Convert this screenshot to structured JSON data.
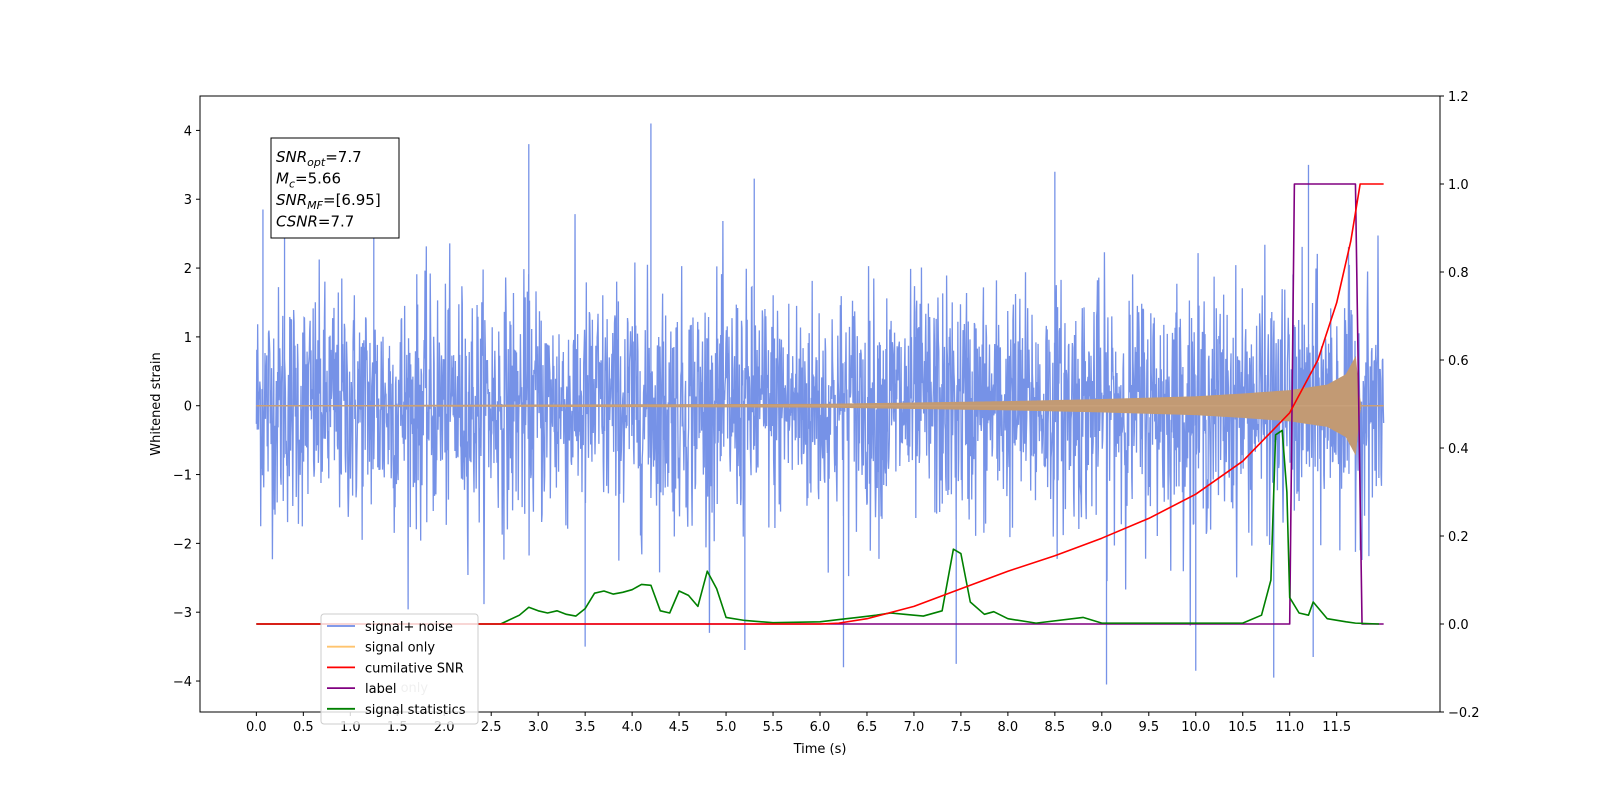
{
  "chart_data": {
    "type": "line",
    "xlabel": "Time (s)",
    "ylabel_left": "Whitened strain",
    "ylabel_right": "",
    "xlim": [
      -0.6,
      12.6
    ],
    "ylim_left": [
      -4.45,
      4.5
    ],
    "ylim_right": [
      -0.2,
      1.2
    ],
    "x_ticks": [
      "0.0",
      "0.5",
      "1.0",
      "1.5",
      "2.0",
      "2.5",
      "3.0",
      "3.5",
      "4.0",
      "4.5",
      "5.0",
      "5.5",
      "6.0",
      "6.5",
      "7.0",
      "7.5",
      "8.0",
      "8.5",
      "9.0",
      "9.5",
      "10.0",
      "10.5",
      "11.0",
      "11.5"
    ],
    "x_tick_values": [
      0,
      0.5,
      1,
      1.5,
      2,
      2.5,
      3,
      3.5,
      4,
      4.5,
      5,
      5.5,
      6,
      6.5,
      7,
      7.5,
      8,
      8.5,
      9,
      9.5,
      10,
      10.5,
      11,
      11.5
    ],
    "y_left_ticks": [
      "4",
      "3",
      "2",
      "1",
      "0",
      "−1",
      "−2",
      "−3",
      "−4"
    ],
    "y_left_tick_values": [
      4,
      3,
      2,
      1,
      0,
      -1,
      -2,
      -3,
      -4
    ],
    "y_right_ticks": [
      "1.2",
      "1.0",
      "0.8",
      "0.6",
      "0.4",
      "0.2",
      "0.0",
      "−0.2"
    ],
    "y_right_tick_values": [
      1.2,
      1.0,
      0.8,
      0.6,
      0.4,
      0.2,
      0.0,
      -0.2
    ],
    "annotation": {
      "lines": [
        {
          "main": "SNR",
          "sub": "opt",
          "rest": "=7.7"
        },
        {
          "main": "M",
          "sub": "c",
          "rest": "=5.66"
        },
        {
          "main": "SNR",
          "sub": "MF",
          "rest": "=[6.95]"
        },
        {
          "main": "CSNR",
          "sub": "",
          "rest": "=7.7"
        }
      ]
    },
    "legend": {
      "position": "lower-left",
      "entries": [
        {
          "label": "signal+ noise",
          "color": "#6f8ce6"
        },
        {
          "label": "signal only",
          "color": "#ffc46e"
        },
        {
          "label": "cumilative SNR",
          "color": "#ff0000"
        },
        {
          "label": "label",
          "color": "#800080"
        },
        {
          "label": "signal statistics",
          "color": "#008000"
        }
      ]
    },
    "hidden_legend_text": "label only",
    "series": [
      {
        "name": "signal+ noise",
        "axis": "left",
        "color": "#6f8ce6",
        "kind": "noise",
        "t_start": 0.0,
        "t_end": 12.0,
        "band_sigma": 0.85,
        "peaks": [
          {
            "x": 0.07,
            "y": 2.85
          },
          {
            "x": 0.3,
            "y": 3.0
          },
          {
            "x": 1.25,
            "y": 3.05
          },
          {
            "x": 2.9,
            "y": 3.8
          },
          {
            "x": 4.2,
            "y": 4.1
          },
          {
            "x": 5.3,
            "y": 3.3
          },
          {
            "x": 8.5,
            "y": 3.4
          },
          {
            "x": 11.2,
            "y": 3.5
          },
          {
            "x": 3.5,
            "y": -3.5
          },
          {
            "x": 5.2,
            "y": -3.55
          },
          {
            "x": 6.25,
            "y": -3.8
          },
          {
            "x": 7.45,
            "y": -3.75
          },
          {
            "x": 9.05,
            "y": -4.05
          },
          {
            "x": 10.0,
            "y": -3.85
          },
          {
            "x": 10.83,
            "y": -3.95
          },
          {
            "x": 11.25,
            "y": -3.65
          }
        ]
      },
      {
        "name": "signal only",
        "axis": "left",
        "color": "#ffc46e",
        "kind": "envelope",
        "points": [
          [
            0,
            0.0
          ],
          [
            6.0,
            0.02
          ],
          [
            7.0,
            0.04
          ],
          [
            8.0,
            0.06
          ],
          [
            9.0,
            0.09
          ],
          [
            10.0,
            0.13
          ],
          [
            10.5,
            0.17
          ],
          [
            11.0,
            0.22
          ],
          [
            11.4,
            0.3
          ],
          [
            11.6,
            0.45
          ],
          [
            11.7,
            0.7
          ],
          [
            11.75,
            0.0
          ],
          [
            12.0,
            0.0
          ]
        ]
      },
      {
        "name": "cumilative SNR",
        "axis": "right",
        "color": "#ff0000",
        "points": [
          [
            0,
            0.0
          ],
          [
            6.0,
            0.0
          ],
          [
            6.2,
            0.002
          ],
          [
            6.5,
            0.012
          ],
          [
            7.0,
            0.04
          ],
          [
            7.5,
            0.08
          ],
          [
            8.0,
            0.12
          ],
          [
            8.5,
            0.155
          ],
          [
            9.0,
            0.195
          ],
          [
            9.5,
            0.24
          ],
          [
            10.0,
            0.295
          ],
          [
            10.5,
            0.37
          ],
          [
            11.0,
            0.48
          ],
          [
            11.3,
            0.6
          ],
          [
            11.5,
            0.73
          ],
          [
            11.65,
            0.87
          ],
          [
            11.75,
            1.0
          ],
          [
            12.0,
            1.0
          ]
        ]
      },
      {
        "name": "label",
        "axis": "right",
        "color": "#800080",
        "points": [
          [
            0,
            0.0
          ],
          [
            11.0,
            0.0
          ],
          [
            11.05,
            1.0
          ],
          [
            11.7,
            1.0
          ],
          [
            11.77,
            0.0
          ],
          [
            12.0,
            0.0
          ]
        ]
      },
      {
        "name": "signal statistics",
        "axis": "right",
        "color": "#008000",
        "points": [
          [
            0,
            0.0
          ],
          [
            2.6,
            0.0
          ],
          [
            2.8,
            0.02
          ],
          [
            2.9,
            0.038
          ],
          [
            3.0,
            0.03
          ],
          [
            3.1,
            0.025
          ],
          [
            3.2,
            0.03
          ],
          [
            3.3,
            0.022
          ],
          [
            3.4,
            0.018
          ],
          [
            3.5,
            0.035
          ],
          [
            3.6,
            0.07
          ],
          [
            3.7,
            0.075
          ],
          [
            3.8,
            0.068
          ],
          [
            3.9,
            0.072
          ],
          [
            4.0,
            0.078
          ],
          [
            4.1,
            0.09
          ],
          [
            4.2,
            0.088
          ],
          [
            4.3,
            0.03
          ],
          [
            4.4,
            0.025
          ],
          [
            4.5,
            0.075
          ],
          [
            4.6,
            0.065
          ],
          [
            4.7,
            0.04
          ],
          [
            4.8,
            0.12
          ],
          [
            4.9,
            0.08
          ],
          [
            5.0,
            0.015
          ],
          [
            5.2,
            0.008
          ],
          [
            5.5,
            0.003
          ],
          [
            6.0,
            0.005
          ],
          [
            6.2,
            0.01
          ],
          [
            6.4,
            0.015
          ],
          [
            6.6,
            0.02
          ],
          [
            6.75,
            0.025
          ],
          [
            6.9,
            0.022
          ],
          [
            7.1,
            0.018
          ],
          [
            7.3,
            0.03
          ],
          [
            7.42,
            0.17
          ],
          [
            7.5,
            0.16
          ],
          [
            7.6,
            0.05
          ],
          [
            7.75,
            0.022
          ],
          [
            7.85,
            0.028
          ],
          [
            8.0,
            0.012
          ],
          [
            8.3,
            0.002
          ],
          [
            8.8,
            0.015
          ],
          [
            9.0,
            0.002
          ],
          [
            10.5,
            0.002
          ],
          [
            10.7,
            0.02
          ],
          [
            10.8,
            0.1
          ],
          [
            10.85,
            0.43
          ],
          [
            10.92,
            0.44
          ],
          [
            10.97,
            0.3
          ],
          [
            11.0,
            0.06
          ],
          [
            11.1,
            0.025
          ],
          [
            11.2,
            0.02
          ],
          [
            11.25,
            0.05
          ],
          [
            11.4,
            0.012
          ],
          [
            11.6,
            0.005
          ],
          [
            11.7,
            0.002
          ],
          [
            11.95,
            0.0
          ]
        ]
      }
    ]
  }
}
